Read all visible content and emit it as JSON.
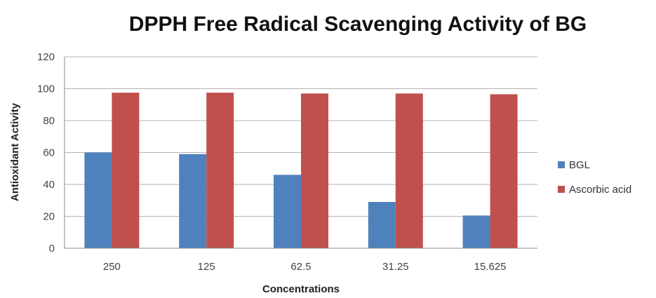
{
  "chart_data": {
    "type": "bar",
    "title": "DPPH Free Radical Scavenging Activity of BG",
    "xlabel": "Concentrations",
    "ylabel": "Antioxidant Activity",
    "categories": [
      "250",
      "125",
      "62.5",
      "31.25",
      "15.625"
    ],
    "ylim": [
      0,
      120
    ],
    "yticks": [
      "0",
      "20",
      "40",
      "60",
      "80",
      "100",
      "120"
    ],
    "grid": true,
    "legend_position": "right",
    "series": [
      {
        "name": "BGL",
        "color": "#4f81bd",
        "values": [
          60,
          59,
          46,
          29,
          20.5
        ]
      },
      {
        "name": "Ascorbic acid",
        "color": "#c0504d",
        "values": [
          97.5,
          97.5,
          97,
          97,
          96.5
        ]
      }
    ]
  }
}
